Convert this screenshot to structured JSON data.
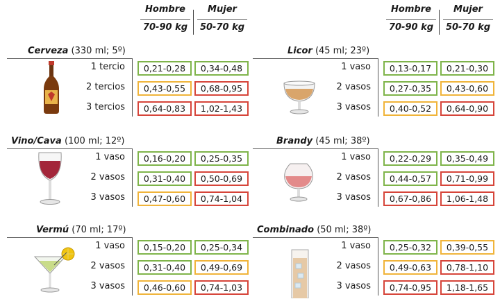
{
  "headers": {
    "hombre": "Hombre",
    "hombre_weight": "70-90 kg",
    "mujer": "Mujer",
    "mujer_weight": "50-70 kg"
  },
  "colors": {
    "green": "#7fb44a",
    "yellow": "#f0b43a",
    "red": "#d6453a"
  },
  "sections": [
    {
      "name": "Cerveza",
      "detail": "(330 ml; 5º)",
      "icon": "beer-bottle-icon",
      "rows": [
        {
          "label": "1 tercio",
          "hombre": "0,21-0,28",
          "hombre_level": "green",
          "mujer": "0,34-0,48",
          "mujer_level": "green"
        },
        {
          "label": "2 tercios",
          "hombre": "0,43-0,55",
          "hombre_level": "yellow",
          "mujer": "0,68-0,95",
          "mujer_level": "red"
        },
        {
          "label": "3 tercios",
          "hombre": "0,64-0,83",
          "hombre_level": "red",
          "mujer": "1,02-1,43",
          "mujer_level": "red"
        }
      ]
    },
    {
      "name": "Licor",
      "detail": "(45 ml; 23º)",
      "icon": "liqueur-glass-icon",
      "rows": [
        {
          "label": "1 vaso",
          "hombre": "0,13-0,17",
          "hombre_level": "green",
          "mujer": "0,21-0,30",
          "mujer_level": "green"
        },
        {
          "label": "2 vasos",
          "hombre": "0,27-0,35",
          "hombre_level": "green",
          "mujer": "0,43-0,60",
          "mujer_level": "yellow"
        },
        {
          "label": "3 vasos",
          "hombre": "0,40-0,52",
          "hombre_level": "yellow",
          "mujer": "0,64-0,90",
          "mujer_level": "red"
        }
      ]
    },
    {
      "name": "Vino/Cava",
      "detail": "(100 ml; 12º)",
      "icon": "wine-glass-icon",
      "rows": [
        {
          "label": "1 vaso",
          "hombre": "0,16-0,20",
          "hombre_level": "green",
          "mujer": "0,25-0,35",
          "mujer_level": "green"
        },
        {
          "label": "2 vasos",
          "hombre": "0,31-0,40",
          "hombre_level": "green",
          "mujer": "0,50-0,69",
          "mujer_level": "red"
        },
        {
          "label": "3 vasos",
          "hombre": "0,47-0,60",
          "hombre_level": "yellow",
          "mujer": "0,74-1,04",
          "mujer_level": "red"
        }
      ]
    },
    {
      "name": "Brandy",
      "detail": "(45 ml; 38º)",
      "icon": "brandy-glass-icon",
      "rows": [
        {
          "label": "1 vaso",
          "hombre": "0,22-0,29",
          "hombre_level": "green",
          "mujer": "0,35-0,49",
          "mujer_level": "green"
        },
        {
          "label": "2 vasos",
          "hombre": "0,44-0,57",
          "hombre_level": "green",
          "mujer": "0,71-0,99",
          "mujer_level": "red"
        },
        {
          "label": "3 vasos",
          "hombre": "0,67-0,86",
          "hombre_level": "red",
          "mujer": "1,06-1,48",
          "mujer_level": "red"
        }
      ]
    },
    {
      "name": "Vermú",
      "detail": "(70 ml; 17º)",
      "icon": "martini-glass-icon",
      "rows": [
        {
          "label": "1 vaso",
          "hombre": "0,15-0,20",
          "hombre_level": "green",
          "mujer": "0,25-0,34",
          "mujer_level": "green"
        },
        {
          "label": "2 vasos",
          "hombre": "0,31-0,40",
          "hombre_level": "green",
          "mujer": "0,49-0,69",
          "mujer_level": "yellow"
        },
        {
          "label": "3 vasos",
          "hombre": "0,46-0,60",
          "hombre_level": "yellow",
          "mujer": "0,74-1,03",
          "mujer_level": "red"
        }
      ]
    },
    {
      "name": "Combinado",
      "detail": "(50 ml; 38º)",
      "icon": "highball-glass-icon",
      "rows": [
        {
          "label": "1 vaso",
          "hombre": "0,25-0,32",
          "hombre_level": "green",
          "mujer": "0,39-0,55",
          "mujer_level": "yellow"
        },
        {
          "label": "2 vasos",
          "hombre": "0,49-0,63",
          "hombre_level": "yellow",
          "mujer": "0,78-1,10",
          "mujer_level": "red"
        },
        {
          "label": "3 vasos",
          "hombre": "0,74-0,95",
          "hombre_level": "red",
          "mujer": "1,18-1,65",
          "mujer_level": "red"
        }
      ]
    }
  ]
}
